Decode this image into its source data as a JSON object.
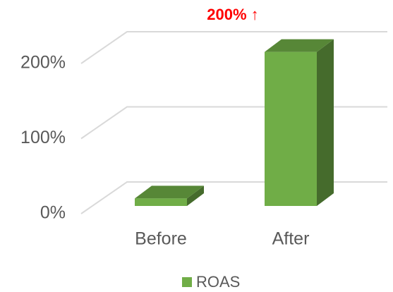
{
  "chart_data": {
    "type": "bar3d",
    "annotation": "200% ↑",
    "categories": [
      "Before",
      "After"
    ],
    "series": [
      {
        "name": "ROAS",
        "color": "#70ad47",
        "values": [
          10,
          205
        ]
      }
    ],
    "ylim": [
      0,
      200
    ],
    "yticks": [
      {
        "value": 0,
        "label": "0%"
      },
      {
        "value": 100,
        "label": "100%"
      },
      {
        "value": 200,
        "label": "200%"
      }
    ],
    "grid": true,
    "legend": "bottom"
  }
}
